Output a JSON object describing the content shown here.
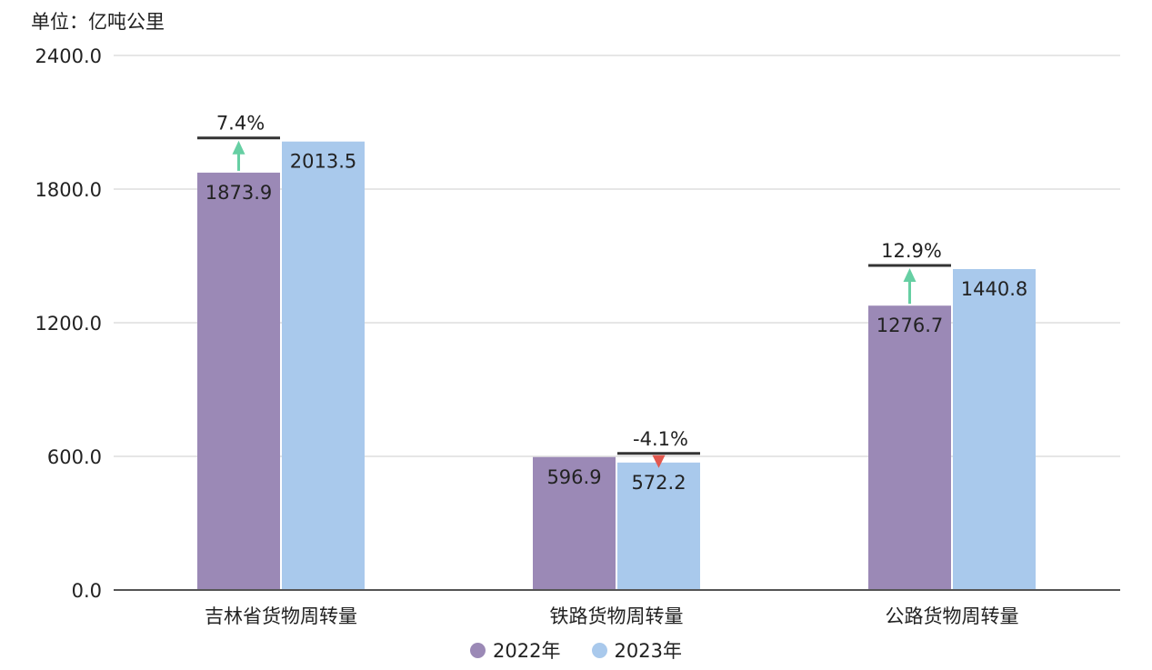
{
  "chart_data": {
    "type": "bar",
    "unit_label": "单位：亿吨公里",
    "categories": [
      "吉林省货物周转量",
      "铁路货物周转量",
      "公路货物周转量"
    ],
    "series": [
      {
        "name": "2022年",
        "values": [
          1873.9,
          596.9,
          1276.7
        ],
        "color": "#9b89b6"
      },
      {
        "name": "2023年",
        "values": [
          2013.5,
          572.2,
          1440.8
        ],
        "color": "#a9c9ec"
      }
    ],
    "value_labels": [
      [
        "1873.9",
        "596.9",
        "1276.7"
      ],
      [
        "2013.5",
        "572.2",
        "1440.8"
      ]
    ],
    "changes": [
      {
        "label": "7.4%",
        "direction": "up"
      },
      {
        "label": "-4.1%",
        "direction": "down"
      },
      {
        "label": "12.9%",
        "direction": "up"
      }
    ],
    "ylim": [
      0,
      2400
    ],
    "yticks": [
      "0.0",
      "600.0",
      "1200.0",
      "1800.0",
      "2400.0"
    ],
    "yticks_values": [
      0,
      600,
      1200,
      1800,
      2400
    ],
    "grid": true,
    "legend_position": "bottom-center",
    "colors": {
      "up_arrow": "#66cfa3",
      "down_arrow": "#e2584f",
      "grid": "#dddddd",
      "axis": "#555555",
      "marker_line": "#333333"
    }
  }
}
